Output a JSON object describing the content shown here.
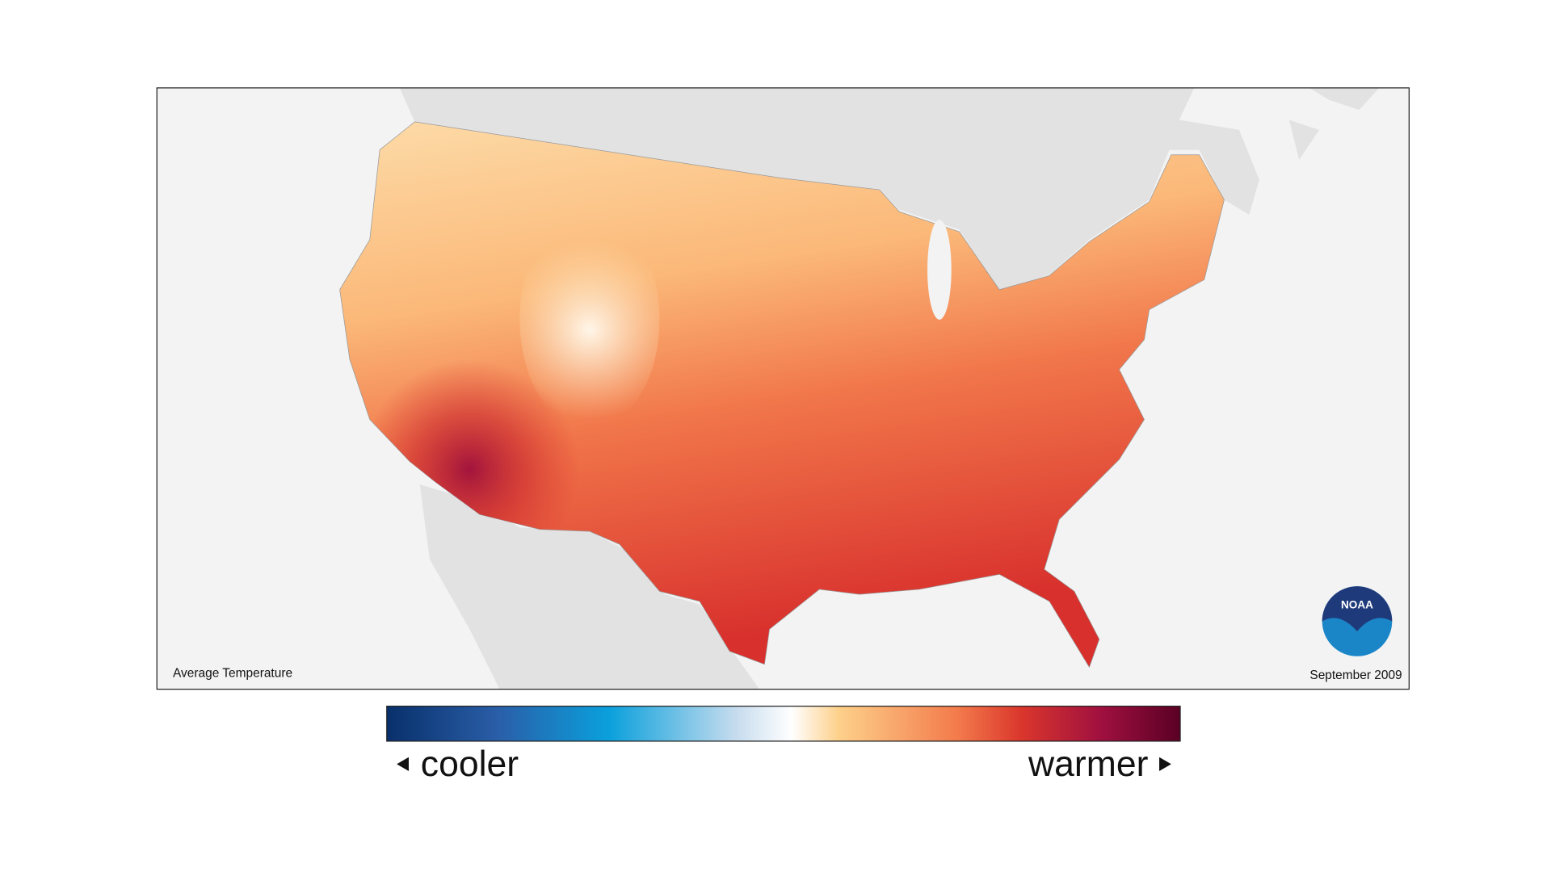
{
  "map": {
    "label": "Average Temperature",
    "date": "September 2009"
  },
  "legend": {
    "low": "cooler",
    "high": "warmer"
  },
  "logo": {
    "text": "NOAA"
  }
}
